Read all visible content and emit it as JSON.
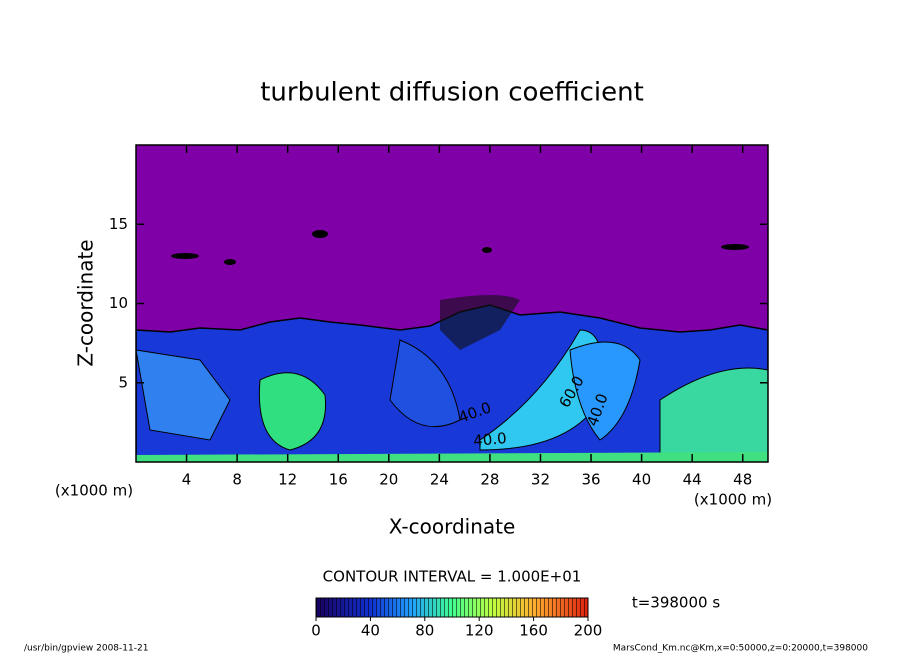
{
  "chart_data": {
    "type": "contour",
    "title": "turbulent diffusion coefficient",
    "xlabel": "X-coordinate",
    "ylabel": "Z-coordinate",
    "x_unit": "(x1000 m)",
    "y_unit": "(x1000 m)",
    "xlim": [
      0,
      50
    ],
    "ylim": [
      0,
      20
    ],
    "xticks": [
      4,
      8,
      12,
      16,
      20,
      24,
      28,
      32,
      36,
      40,
      44,
      48
    ],
    "yticks": [
      5,
      10,
      15
    ],
    "contour_labels": [
      "40.0",
      "40.0",
      "60.0",
      "40.0"
    ],
    "contour_interval": "CONTOUR INTERVAL = 1.000E+01",
    "colorbar": {
      "lim": [
        0,
        200
      ],
      "ticks": [
        0,
        40,
        80,
        120,
        160,
        200
      ]
    },
    "time_label": "t=398000 s",
    "footer_left": "/usr/bin/gpview  2008-11-21",
    "footer_right": "MarsCond_Km.nc@Km,x=0:50000,z=0:20000,t=398000"
  }
}
